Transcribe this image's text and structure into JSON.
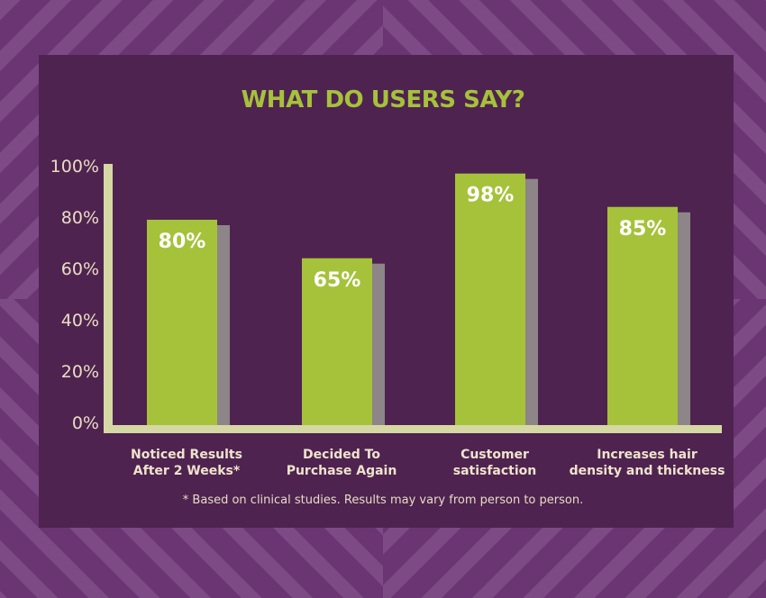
{
  "colors": {
    "background": "#6a3572",
    "stripes": "#7d4a86",
    "panel": "#4f2350",
    "bar": "#a5c23a",
    "bar_shadow": "#8d8588",
    "axis": "#d5d8a4",
    "title": "#a5c23a",
    "text": "#e8ddc3",
    "value_label": "#ffffff"
  },
  "chart_data": {
    "type": "bar",
    "title": "WHAT DO USERS SAY?",
    "categories": [
      [
        "Noticed Results",
        "After 2 Weeks*"
      ],
      [
        "Decided To",
        "Purchase Again"
      ],
      [
        "Customer",
        "satisfaction"
      ],
      [
        "Increases hair",
        "density and thickness"
      ]
    ],
    "values": [
      80,
      65,
      98,
      85
    ],
    "value_labels": [
      "80%",
      "65%",
      "98%",
      "85%"
    ],
    "yticks": [
      "0%",
      "20%",
      "40%",
      "60%",
      "80%",
      "100%"
    ],
    "ylim": [
      0,
      100
    ],
    "grid": false,
    "legend": "none"
  },
  "footnote": "* Based on clinical studies. Results may vary from person to person."
}
